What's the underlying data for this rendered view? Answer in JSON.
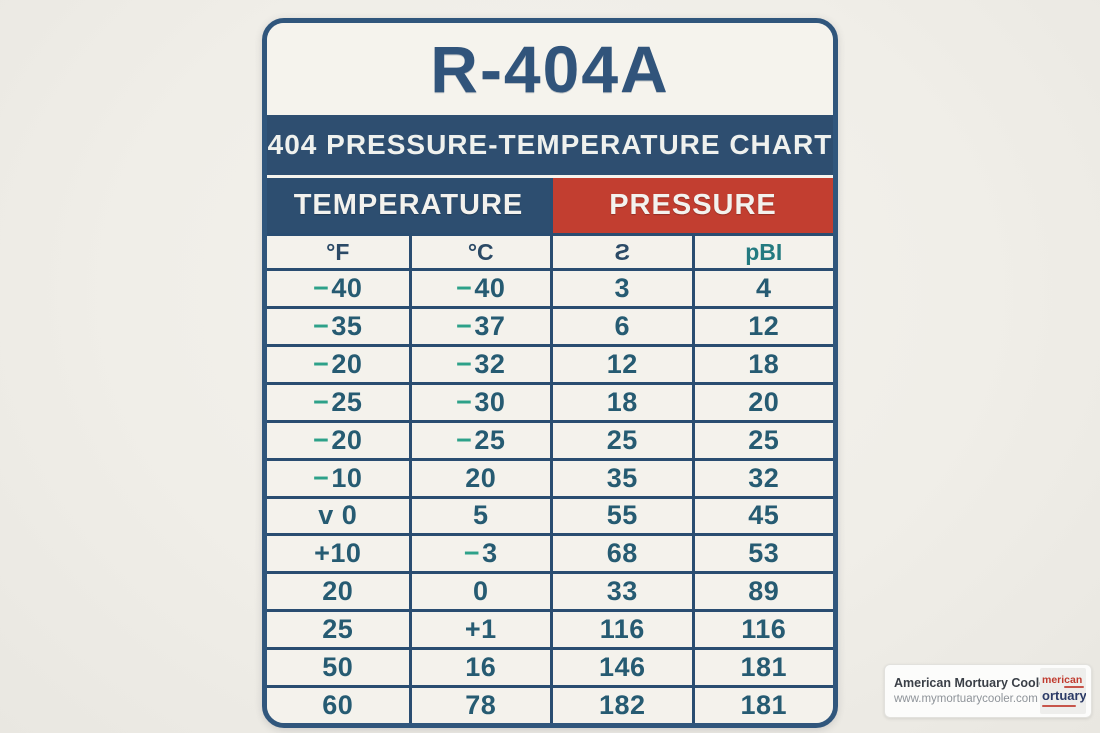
{
  "chart_data": {
    "type": "table",
    "title": "R-404A",
    "subtitle": "404 PRESSURE-TEMPERATURE CHART",
    "column_groups": [
      {
        "label": "TEMPERATURE",
        "span": 2
      },
      {
        "label": "PRESSURE",
        "span": 2
      }
    ],
    "columns": [
      "°F",
      "°C",
      "Ƨ",
      "pBI"
    ],
    "rows": [
      [
        "-40",
        "-40",
        "3",
        "4"
      ],
      [
        "-35",
        "-37",
        "6",
        "12"
      ],
      [
        "-20",
        "-32",
        "12",
        "18"
      ],
      [
        "-25",
        "-30",
        "18",
        "20"
      ],
      [
        "-20",
        "-25",
        "25",
        "25"
      ],
      [
        "-10",
        "20",
        "35",
        "32"
      ],
      [
        "v 0",
        "5",
        "55",
        "45"
      ],
      [
        "+10",
        "-3",
        "68",
        "53"
      ],
      [
        "20",
        "0",
        "33",
        "89"
      ],
      [
        "25",
        "+1",
        "116",
        "116"
      ],
      [
        "50",
        "16",
        "146",
        "181"
      ],
      [
        "60",
        "78",
        "182",
        "181"
      ]
    ]
  },
  "colors": {
    "card_border": "#30567c",
    "title_text": "#31547b",
    "banner_bg": "#2e4e70",
    "header_blue": "#2d4e70",
    "header_red": "#c23e30",
    "grid_line": "#2a4d71",
    "number_text": "#265b72",
    "negative_sign": "#2da189",
    "psi_text": "#237a80"
  },
  "watermark": {
    "name": "American Mortuary Coolers",
    "url": "www.mymortuarycooler.com",
    "logo_text_top": "merican",
    "logo_text_bottom": "ortuary"
  }
}
